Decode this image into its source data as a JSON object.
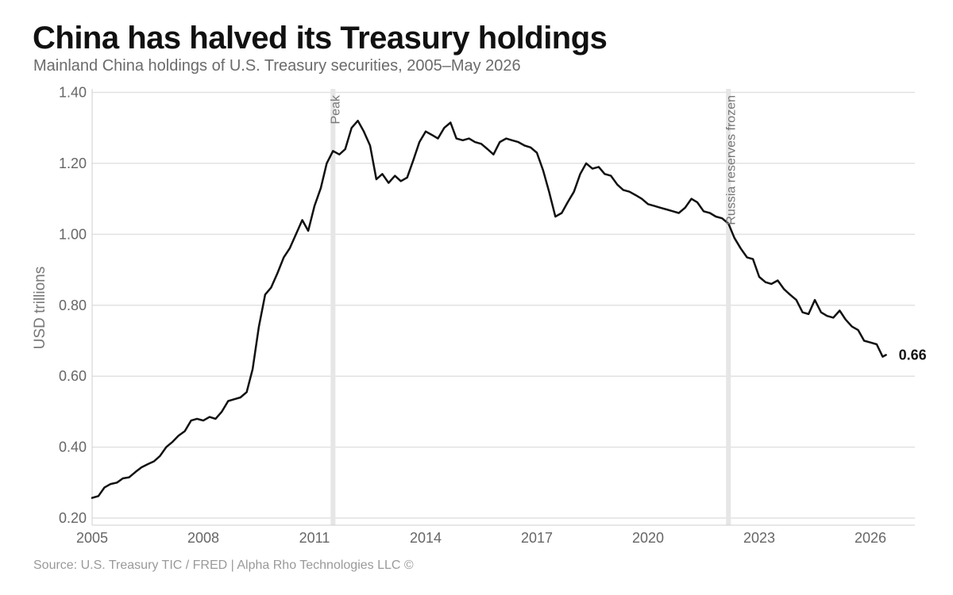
{
  "header": {
    "title": "China has halved its Treasury holdings",
    "subtitle": "Mainland China holdings of U.S. Treasury securities, 2005–May 2026"
  },
  "footer": {
    "source": "Source: U.S. Treasury TIC / FRED | Alpha Rho Technologies LLC ©"
  },
  "chart_data": {
    "type": "line",
    "title": "China has halved its Treasury holdings",
    "subtitle": "Mainland China holdings of U.S. Treasury securities, 2005–May 2026",
    "xlabel": "",
    "ylabel": "USD trillions",
    "xlim": [
      2005,
      2027.2
    ],
    "ylim": [
      0.18,
      1.41
    ],
    "x_ticks": [
      2005,
      2008,
      2011,
      2014,
      2017,
      2020,
      2023,
      2026
    ],
    "x_tick_labels": [
      "2005",
      "2008",
      "2011",
      "2014",
      "2017",
      "2020",
      "2023",
      "2026"
    ],
    "y_ticks": [
      0.2,
      0.4,
      0.6,
      0.8,
      1.0,
      1.2,
      1.4
    ],
    "y_tick_labels": [
      "0.20",
      "0.40",
      "0.60",
      "0.80",
      "1.00",
      "1.20",
      "1.40"
    ],
    "grid": true,
    "legend": "none",
    "colors": {
      "line": "#111111",
      "grid": "#e2e2e2",
      "event_band": "#e6e6e6"
    },
    "events": [
      {
        "x": 2011.5,
        "label": "Peak"
      },
      {
        "x": 2022.17,
        "label": "Russia reserves frozen"
      }
    ],
    "end_label": "0.66",
    "series": [
      {
        "points": [
          [
            2005.0,
            0.257
          ],
          [
            2005.17,
            0.262
          ],
          [
            2005.33,
            0.286
          ],
          [
            2005.5,
            0.296
          ],
          [
            2005.67,
            0.3
          ],
          [
            2005.83,
            0.312
          ],
          [
            2006.0,
            0.315
          ],
          [
            2006.17,
            0.33
          ],
          [
            2006.33,
            0.343
          ],
          [
            2006.5,
            0.352
          ],
          [
            2006.67,
            0.36
          ],
          [
            2006.83,
            0.375
          ],
          [
            2007.0,
            0.4
          ],
          [
            2007.17,
            0.415
          ],
          [
            2007.33,
            0.432
          ],
          [
            2007.5,
            0.445
          ],
          [
            2007.67,
            0.475
          ],
          [
            2007.83,
            0.48
          ],
          [
            2008.0,
            0.475
          ],
          [
            2008.17,
            0.485
          ],
          [
            2008.33,
            0.48
          ],
          [
            2008.5,
            0.5
          ],
          [
            2008.67,
            0.53
          ],
          [
            2008.83,
            0.535
          ],
          [
            2009.0,
            0.54
          ],
          [
            2009.17,
            0.555
          ],
          [
            2009.33,
            0.62
          ],
          [
            2009.5,
            0.74
          ],
          [
            2009.67,
            0.83
          ],
          [
            2009.83,
            0.85
          ],
          [
            2010.0,
            0.89
          ],
          [
            2010.17,
            0.935
          ],
          [
            2010.33,
            0.96
          ],
          [
            2010.5,
            1.0
          ],
          [
            2010.67,
            1.04
          ],
          [
            2010.83,
            1.01
          ],
          [
            2011.0,
            1.08
          ],
          [
            2011.17,
            1.13
          ],
          [
            2011.33,
            1.2
          ],
          [
            2011.5,
            1.235
          ],
          [
            2011.67,
            1.225
          ],
          [
            2011.83,
            1.24
          ],
          [
            2012.0,
            1.3
          ],
          [
            2012.17,
            1.32
          ],
          [
            2012.33,
            1.29
          ],
          [
            2012.5,
            1.25
          ],
          [
            2012.67,
            1.155
          ],
          [
            2012.83,
            1.17
          ],
          [
            2013.0,
            1.145
          ],
          [
            2013.17,
            1.165
          ],
          [
            2013.33,
            1.15
          ],
          [
            2013.5,
            1.16
          ],
          [
            2013.67,
            1.21
          ],
          [
            2013.83,
            1.26
          ],
          [
            2014.0,
            1.29
          ],
          [
            2014.17,
            1.28
          ],
          [
            2014.33,
            1.27
          ],
          [
            2014.5,
            1.3
          ],
          [
            2014.67,
            1.315
          ],
          [
            2014.83,
            1.27
          ],
          [
            2015.0,
            1.265
          ],
          [
            2015.17,
            1.27
          ],
          [
            2015.33,
            1.26
          ],
          [
            2015.5,
            1.255
          ],
          [
            2015.67,
            1.24
          ],
          [
            2015.83,
            1.225
          ],
          [
            2016.0,
            1.26
          ],
          [
            2016.17,
            1.27
          ],
          [
            2016.33,
            1.265
          ],
          [
            2016.5,
            1.26
          ],
          [
            2016.67,
            1.25
          ],
          [
            2016.83,
            1.245
          ],
          [
            2017.0,
            1.23
          ],
          [
            2017.17,
            1.18
          ],
          [
            2017.33,
            1.12
          ],
          [
            2017.5,
            1.05
          ],
          [
            2017.67,
            1.06
          ],
          [
            2017.83,
            1.09
          ],
          [
            2018.0,
            1.12
          ],
          [
            2018.17,
            1.17
          ],
          [
            2018.33,
            1.2
          ],
          [
            2018.5,
            1.185
          ],
          [
            2018.67,
            1.19
          ],
          [
            2018.83,
            1.17
          ],
          [
            2019.0,
            1.165
          ],
          [
            2019.17,
            1.14
          ],
          [
            2019.33,
            1.125
          ],
          [
            2019.5,
            1.12
          ],
          [
            2019.67,
            1.11
          ],
          [
            2019.83,
            1.1
          ],
          [
            2020.0,
            1.085
          ],
          [
            2020.17,
            1.08
          ],
          [
            2020.33,
            1.075
          ],
          [
            2020.5,
            1.07
          ],
          [
            2020.67,
            1.065
          ],
          [
            2020.83,
            1.06
          ],
          [
            2021.0,
            1.075
          ],
          [
            2021.17,
            1.1
          ],
          [
            2021.33,
            1.09
          ],
          [
            2021.5,
            1.065
          ],
          [
            2021.67,
            1.06
          ],
          [
            2021.83,
            1.05
          ],
          [
            2022.0,
            1.045
          ],
          [
            2022.17,
            1.03
          ],
          [
            2022.33,
            0.99
          ],
          [
            2022.5,
            0.96
          ],
          [
            2022.67,
            0.935
          ],
          [
            2022.83,
            0.93
          ],
          [
            2023.0,
            0.88
          ],
          [
            2023.17,
            0.865
          ],
          [
            2023.33,
            0.86
          ],
          [
            2023.5,
            0.87
          ],
          [
            2023.67,
            0.845
          ],
          [
            2023.83,
            0.83
          ],
          [
            2024.0,
            0.815
          ],
          [
            2024.17,
            0.78
          ],
          [
            2024.33,
            0.775
          ],
          [
            2024.5,
            0.815
          ],
          [
            2024.67,
            0.78
          ],
          [
            2024.83,
            0.77
          ],
          [
            2025.0,
            0.765
          ],
          [
            2025.17,
            0.785
          ],
          [
            2025.33,
            0.76
          ],
          [
            2025.5,
            0.74
          ],
          [
            2025.67,
            0.73
          ],
          [
            2025.83,
            0.7
          ],
          [
            2026.0,
            0.695
          ],
          [
            2026.17,
            0.69
          ],
          [
            2026.33,
            0.655
          ],
          [
            2026.42,
            0.66
          ]
        ]
      }
    ]
  }
}
